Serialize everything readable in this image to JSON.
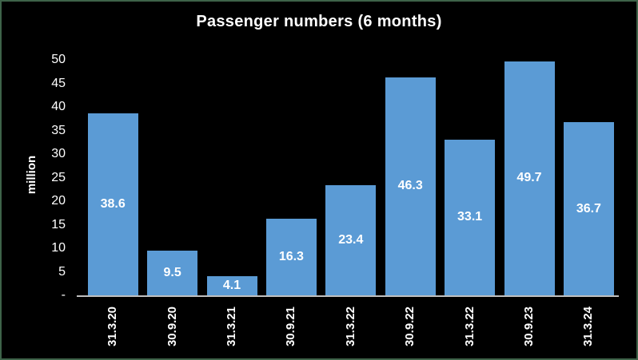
{
  "window": {
    "background_color": "#000000",
    "border_color": "#3E6349"
  },
  "chart_data": {
    "type": "bar",
    "title": "Passenger numbers (6 months)",
    "xlabel": "",
    "ylabel": "million",
    "categories": [
      "31.3.20",
      "30.9.20",
      "31.3.21",
      "30.9.21",
      "31.3.22",
      "30.9.22",
      "31.3.22",
      "30.9.23",
      "31.3.24"
    ],
    "values": [
      38.6,
      9.5,
      4.1,
      16.3,
      23.4,
      46.3,
      33.1,
      49.7,
      36.7
    ],
    "data_labels": [
      "38.6",
      "9.5",
      "4.1",
      "16.3",
      "23.4",
      "46.3",
      "33.1",
      "49.7",
      "36.7"
    ],
    "ylim": [
      0,
      50
    ],
    "ytick_step": 5,
    "yticks": [
      {
        "value": 0,
        "label": "-"
      },
      {
        "value": 5,
        "label": "5"
      },
      {
        "value": 10,
        "label": "10"
      },
      {
        "value": 15,
        "label": "15"
      },
      {
        "value": 20,
        "label": "20"
      },
      {
        "value": 25,
        "label": "25"
      },
      {
        "value": 30,
        "label": "30"
      },
      {
        "value": 35,
        "label": "35"
      },
      {
        "value": 40,
        "label": "40"
      },
      {
        "value": 45,
        "label": "45"
      },
      {
        "value": 50,
        "label": "50"
      }
    ],
    "grid": false,
    "legend": false,
    "bar_color": "#5B9BD5",
    "data_label_color": "#FFFFFF",
    "data_label_position": "inside-center",
    "axis_line_color": "#BFBFBF",
    "text_color": "#FFFFFF",
    "x_tick_rotation_deg": 90
  }
}
